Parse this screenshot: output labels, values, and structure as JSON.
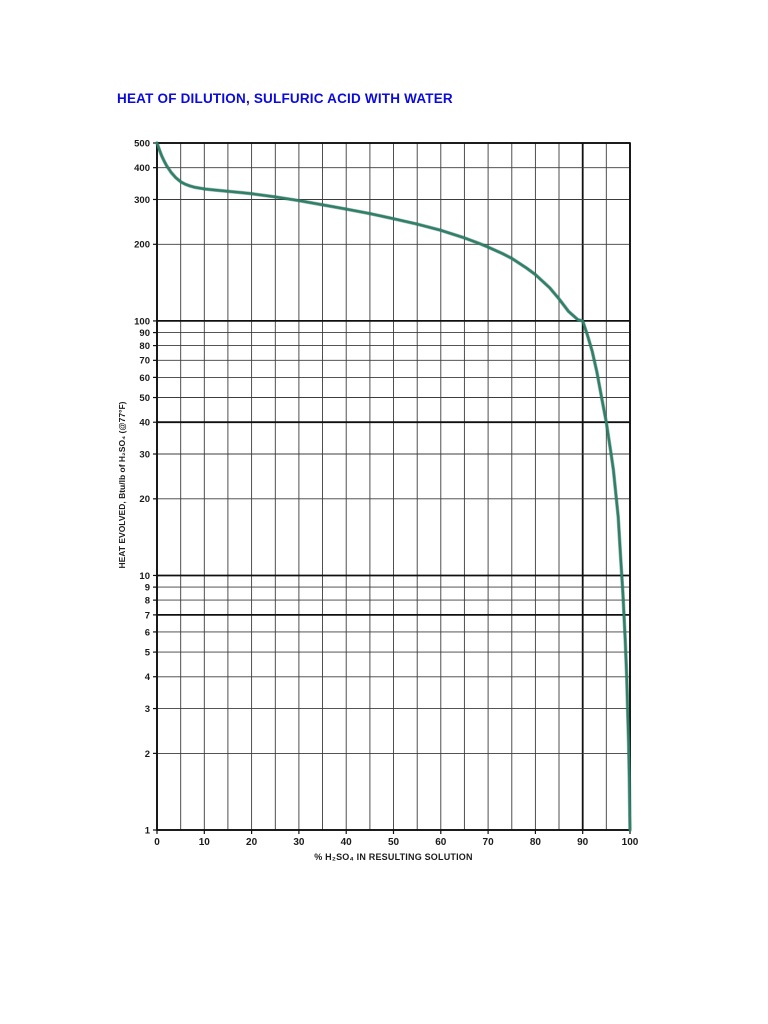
{
  "page": {
    "title": "HEAT OF DILUTION, SULFURIC ACID WITH WATER",
    "title_color": "#0a0ae0"
  },
  "chart_data": {
    "type": "line",
    "title": "HEAT OF DILUTION, SULFURIC ACID WITH WATER",
    "xlabel": "% H₂SO₄ IN RESULTING SOLUTION",
    "ylabel": "HEAT EVOLVED, Btu/lb of H₂SO₄ (@77°F)",
    "x_scale": "linear",
    "y_scale": "log",
    "xlim": [
      0,
      100
    ],
    "ylim": [
      1,
      500
    ],
    "x_ticks": [
      0,
      10,
      20,
      30,
      40,
      50,
      60,
      70,
      80,
      90,
      100
    ],
    "x_minor_step": 5,
    "y_ticks": [
      500,
      400,
      300,
      200,
      100,
      90,
      80,
      70,
      60,
      50,
      40,
      30,
      20,
      10,
      9,
      8,
      7,
      6,
      5,
      4,
      3,
      2,
      1
    ],
    "emphasized_y_gridlines": [
      500,
      100,
      40,
      10,
      7,
      1
    ],
    "emphasized_x_gridlines": [
      0,
      90,
      100
    ],
    "grid": true,
    "legend": "none",
    "curve_color": "#2e8068",
    "curve_shadow_color": "#1f5c4b",
    "series": [
      {
        "name": "heat evolved, Btu/lb of H2SO4",
        "x": [
          0,
          0.5,
          1,
          1.5,
          2,
          3,
          4,
          5,
          6,
          7,
          8,
          10,
          12,
          15,
          18,
          20,
          25,
          30,
          35,
          40,
          45,
          50,
          55,
          60,
          65,
          68,
          70,
          73,
          75,
          78,
          80,
          83,
          85,
          87,
          89,
          90,
          91,
          92,
          93,
          94,
          95,
          96,
          96.5,
          97,
          97.5,
          98,
          98.5,
          99,
          99.3,
          99.5,
          99.7,
          99.85,
          100
        ],
        "y": [
          500,
          470,
          445,
          425,
          408,
          383,
          365,
          352,
          344,
          339,
          335,
          330,
          327,
          323,
          319,
          316,
          307,
          297,
          286,
          275,
          264,
          252,
          240,
          227,
          212,
          202,
          195,
          184,
          176,
          162,
          152,
          135,
          122,
          109,
          101,
          100,
          88,
          76,
          63,
          50,
          40,
          30,
          26,
          21,
          17,
          12,
          8.5,
          5.5,
          4,
          3,
          2.2,
          1.6,
          1
        ]
      }
    ]
  }
}
